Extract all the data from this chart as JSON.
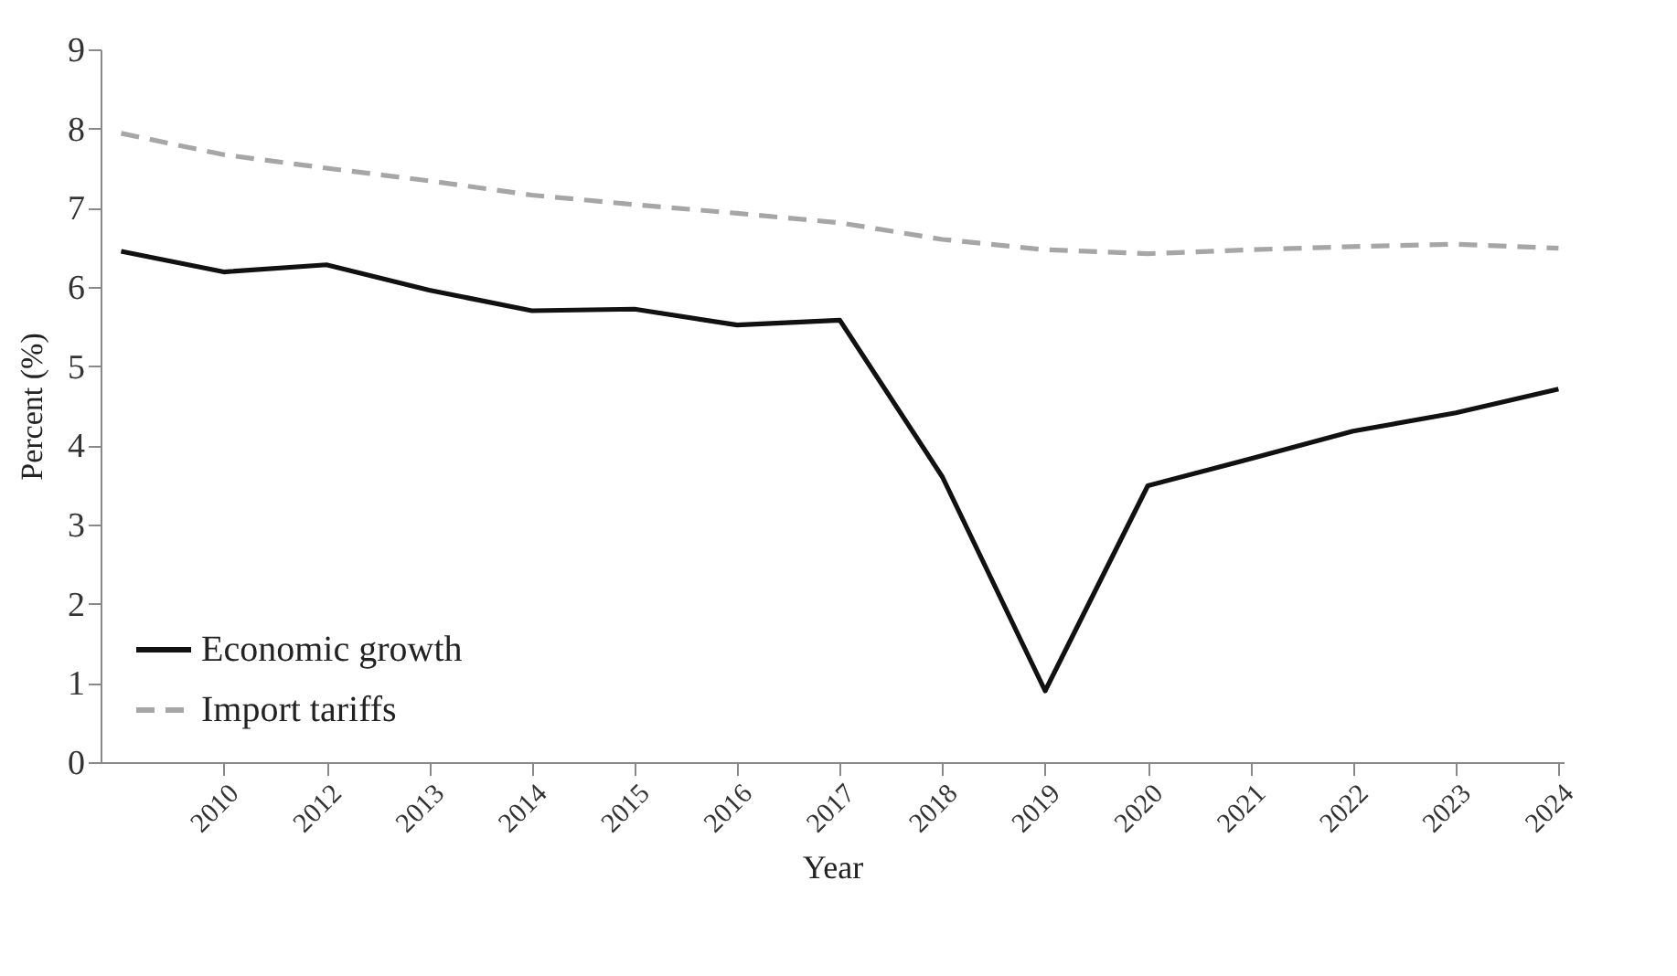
{
  "chart_data": {
    "type": "line",
    "xlabel": "Year",
    "ylabel": "Percent (%)",
    "categories": [
      null,
      "2010",
      "2012",
      "2013",
      "2014",
      "2015",
      "2016",
      "2017",
      "2018",
      "2019",
      "2020",
      "2021",
      "2022",
      "2023",
      "2024"
    ],
    "series": [
      {
        "name": "Economic growth",
        "color": "#111111",
        "line_style": "solid",
        "values": [
          6.45,
          6.19,
          6.28,
          5.96,
          5.7,
          5.72,
          5.52,
          5.58,
          3.6,
          0.9,
          3.49,
          3.83,
          4.18,
          4.41,
          4.71
        ]
      },
      {
        "name": "Import tariffs",
        "color": "#a6a6a6",
        "line_style": "dashed",
        "values": [
          7.94,
          7.67,
          7.5,
          7.34,
          7.16,
          7.04,
          6.93,
          6.81,
          6.6,
          6.47,
          6.42,
          6.47,
          6.51,
          6.54,
          6.49
        ]
      }
    ],
    "ylim": [
      0,
      9
    ],
    "yticks": [
      0,
      1,
      2,
      3,
      4,
      5,
      6,
      7,
      8,
      9
    ],
    "grid": false,
    "legend": "bottom left",
    "marker": "none"
  }
}
